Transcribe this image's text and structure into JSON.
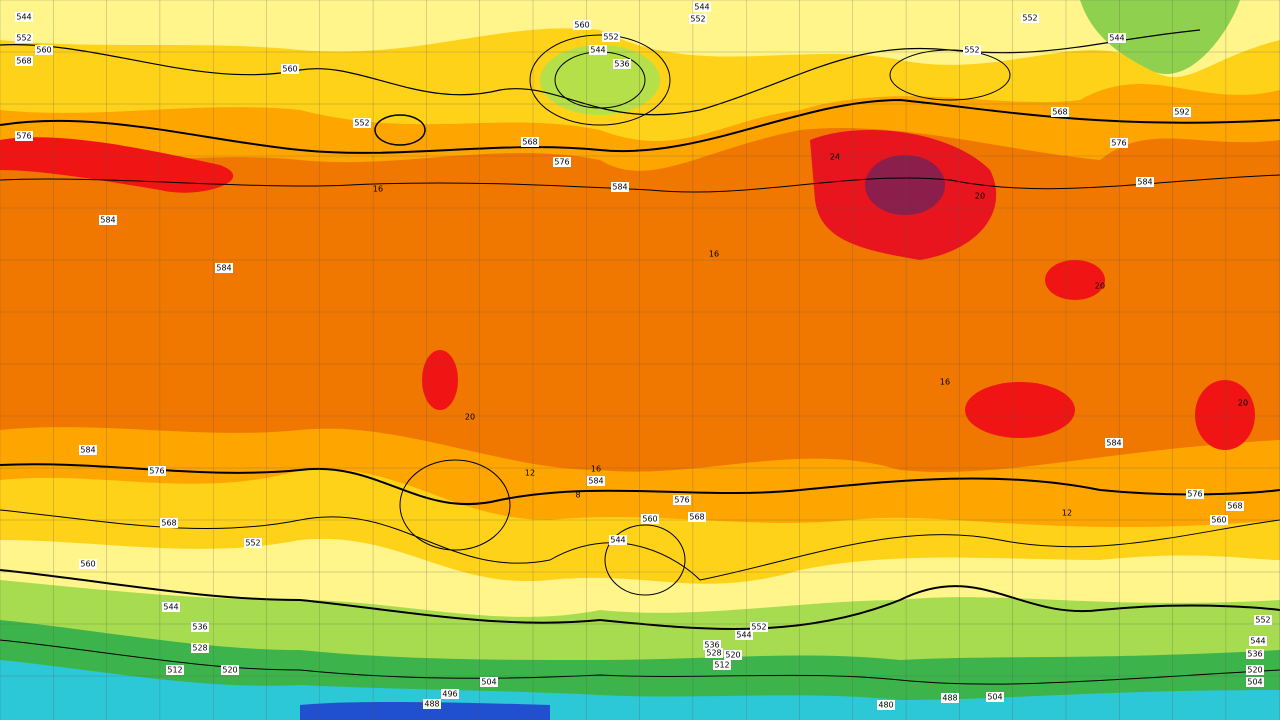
{
  "contour_labels": [
    "544",
    "552",
    "560",
    "568",
    "576",
    "584",
    "584",
    "560",
    "552",
    "568",
    "576",
    "584",
    "560",
    "552",
    "544",
    "536",
    "544",
    "552",
    "552",
    "568",
    "576",
    "584",
    "592",
    "552",
    "544",
    "584",
    "576",
    "568",
    "560",
    "552",
    "544",
    "536",
    "528",
    "520",
    "512",
    "504",
    "496",
    "488",
    "584",
    "576",
    "568",
    "560",
    "544",
    "552",
    "544",
    "536",
    "528",
    "520",
    "512",
    "504",
    "488",
    "480",
    "584",
    "576",
    "568",
    "560",
    "552",
    "544",
    "536",
    "520",
    "504"
  ],
  "thickness_labels": [
    "16",
    "16",
    "20",
    "16",
    "12",
    "8",
    "16",
    "20",
    "12",
    "24",
    "20",
    "20"
  ]
}
